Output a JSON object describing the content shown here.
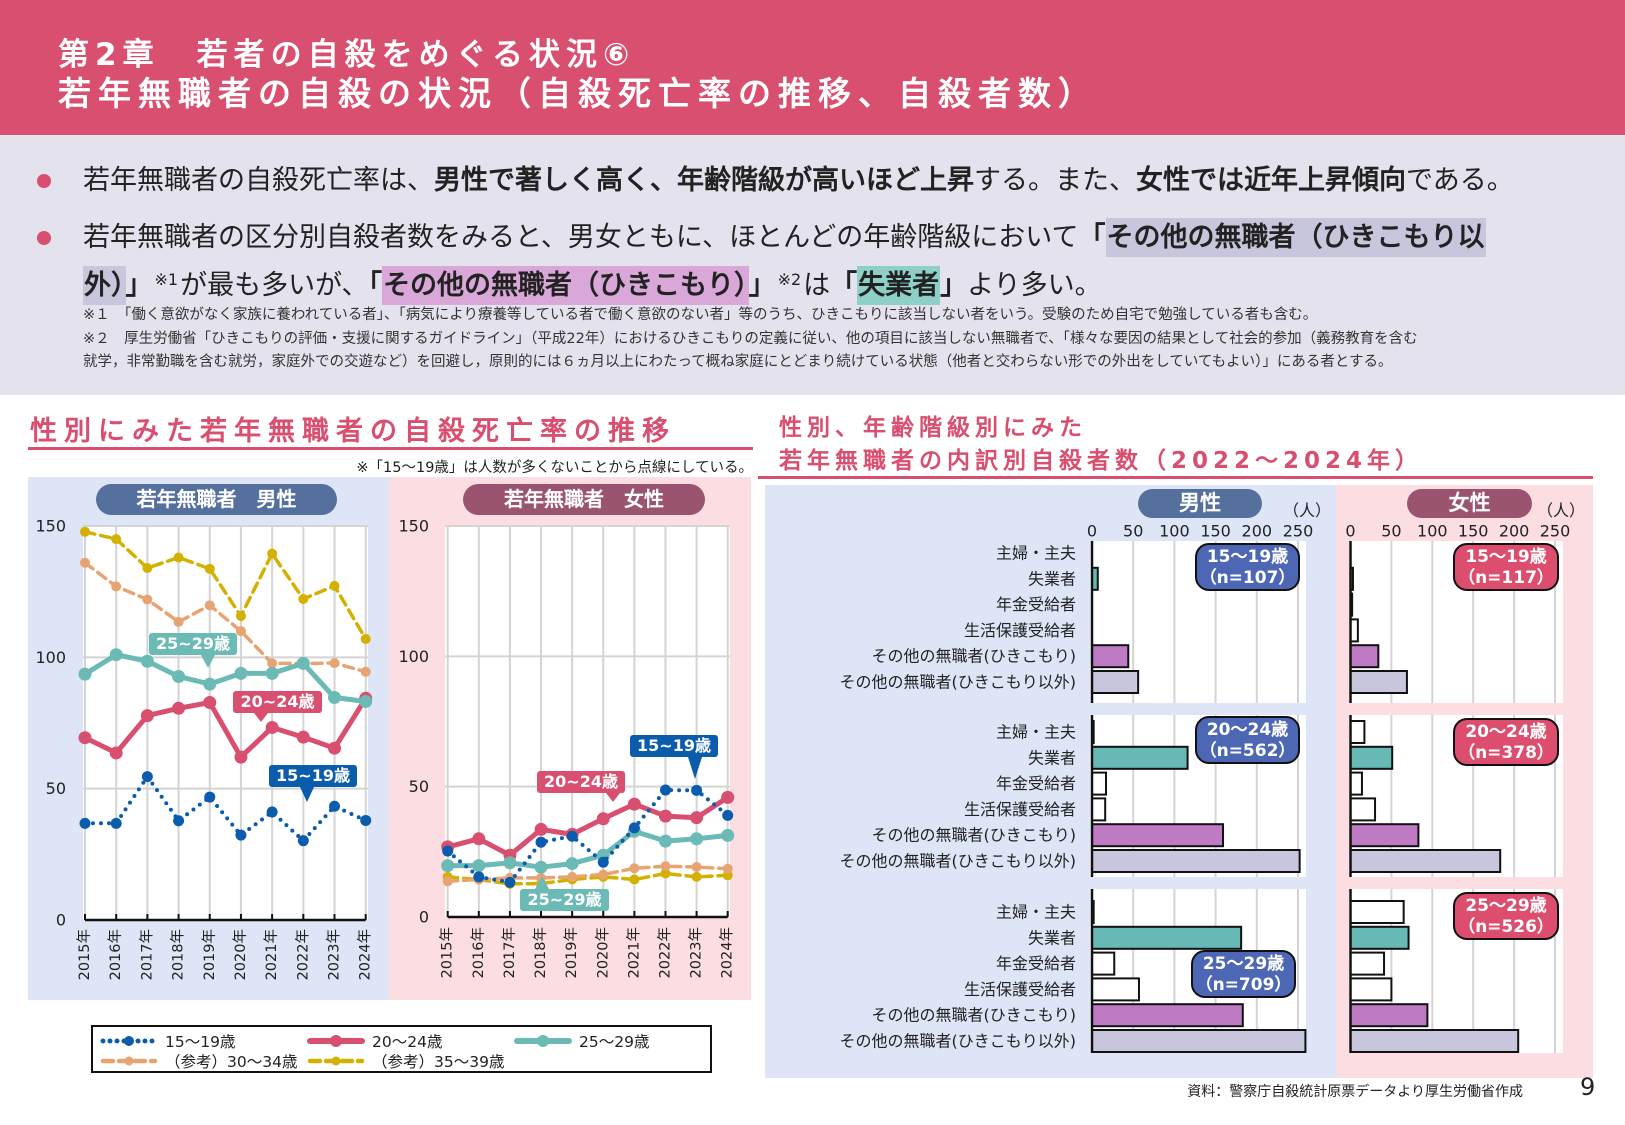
{
  "header": {
    "chapter": "第2章　若者の自殺をめぐる状況⑥",
    "title": "若年無職者の自殺の状況（自殺死亡率の推移、自殺者数）"
  },
  "summary": {
    "highlight_colors": {
      "gray": "#c8c6dc",
      "purple": "#d9a8d8",
      "teal": "#8ecfc7"
    },
    "bullets": [
      {
        "lines": [
          [
            {
              "t": "若年無職者の自殺死亡率は、"
            },
            {
              "t": "男性で著しく高く、年齢階級が高いほど上昇",
              "b": 1
            },
            {
              "t": "する。また、"
            },
            {
              "t": "女性では近年上昇傾向",
              "b": 1
            },
            {
              "t": "である。"
            }
          ]
        ]
      },
      {
        "lines": [
          [
            {
              "t": "若年無職者の区分別自殺者数をみると、男女ともに、ほとんどの年齢階級において"
            },
            {
              "t": "「",
              "b": 1
            },
            {
              "t": "その他の無職者（ひきこもり以",
              "b": 1,
              "hl": "gray"
            }
          ],
          [
            {
              "t": "外）",
              "b": 1,
              "hl": "gray"
            },
            {
              "t": "」",
              "b": 1
            },
            {
              "t": "※1",
              "sup": 1
            },
            {
              "t": "が最も多いが、"
            },
            {
              "t": "「",
              "b": 1
            },
            {
              "t": "その他の無職者（ひきこもり）",
              "b": 1,
              "hl": "purple"
            },
            {
              "t": "」",
              "b": 1
            },
            {
              "t": "※2",
              "sup": 1
            },
            {
              "t": "は"
            },
            {
              "t": "「",
              "b": 1
            },
            {
              "t": "失業者",
              "b": 1,
              "hl": "teal"
            },
            {
              "t": "」",
              "b": 1
            },
            {
              "t": "より多い。"
            }
          ]
        ]
      }
    ],
    "notes": [
      [
        {
          "t": "※１　「働く意欲がなく家族に養われている者」、「病気により療養等している者で働く意欲のない者」等のうち、ひきこもりに該当しない者をいう。受験のため自宅で勉強している者も含む。"
        }
      ],
      [
        {
          "t": "※２　厚生労働省「ひきこもりの評価・支援に関するガイドライン」（平成22年）におけるひきこもりの定義に従い、他の項目に該当しない無職者で、「様々な要因の結果として社会的参加（義務教育を含む"
        }
      ],
      [
        {
          "t": "就学，非常勤職を含む就労，家庭外での交遊など）を回避し，原則的には６ヵ月以上にわたって概ね家庭にとどまり続けている状態（他者と交わらない形での外出をしていてもよい）」にある者とする。"
        }
      ]
    ]
  },
  "left_section": {
    "title": "性別にみた若年無職者の自殺死亡率の推移",
    "note": "※「15〜19歳」は人数が多くないことから点線にしている。"
  },
  "right_section": {
    "title_line1": "性別、年齢階級別にみた",
    "title_line2": "若年無職者の内訳別自殺者数（2022〜2024年）"
  },
  "footer": {
    "source": "資料：警察庁自殺統計原票データより厚生労働省作成",
    "page": "9"
  },
  "chart_data": [
    {
      "type": "line",
      "title": "若年無職者　男性",
      "x": [
        "2015年",
        "2016年",
        "2017年",
        "2018年",
        "2019年",
        "2020年",
        "2021年",
        "2022年",
        "2023年",
        "2024年"
      ],
      "ylim": [
        0,
        150
      ],
      "yticks": [
        0,
        50,
        100,
        150
      ],
      "grid": true,
      "legend_position": "bottom",
      "series": [
        {
          "name": "15〜19歳",
          "style": "dotted",
          "color": "#0b5cad",
          "values": [
            36.8,
            36.8,
            54.6,
            37.8,
            46.8,
            32.3,
            41.1,
            30.2,
            43.3,
            37.9
          ]
        },
        {
          "name": "20〜24歳",
          "style": "solid",
          "color": "#d94f70",
          "values": [
            69.4,
            63.6,
            77.8,
            80.6,
            82.8,
            62.0,
            73.3,
            69.6,
            65.4,
            84.4
          ]
        },
        {
          "name": "25〜29歳",
          "style": "solid",
          "color": "#6bbab6",
          "values": [
            93.6,
            101.0,
            98.5,
            92.7,
            89.8,
            93.9,
            93.9,
            97.7,
            84.7,
            83.2
          ]
        },
        {
          "name": "（参考）30〜34歳",
          "style": "dashed",
          "color": "#e8a373",
          "values": [
            136.0,
            127.0,
            122.0,
            113.5,
            119.8,
            110.0,
            97.7,
            97.7,
            97.8,
            94.5
          ]
        },
        {
          "name": "（参考）35〜39歳",
          "style": "dashed",
          "color": "#d4b000",
          "values": [
            147.8,
            145.0,
            134.0,
            138.0,
            133.7,
            115.7,
            139.5,
            122.2,
            127.2,
            107.0
          ]
        }
      ],
      "annotations": [
        {
          "text": "25~29歳",
          "series": "25〜29歳"
        },
        {
          "text": "20~24歳",
          "series": "20〜24歳"
        },
        {
          "text": "15~19歳",
          "series": "15〜19歳"
        }
      ]
    },
    {
      "type": "line",
      "title": "若年無職者　女性",
      "x": [
        "2015年",
        "2016年",
        "2017年",
        "2018年",
        "2019年",
        "2020年",
        "2021年",
        "2022年",
        "2023年",
        "2024年"
      ],
      "ylim": [
        0,
        150
      ],
      "yticks": [
        0,
        50,
        100,
        150
      ],
      "grid": true,
      "series": [
        {
          "name": "15〜19歳",
          "style": "dotted",
          "color": "#0b5cad",
          "values": [
            25.3,
            15.4,
            13.3,
            28.7,
            31.0,
            21.0,
            34.2,
            48.7,
            48.6,
            39.0
          ]
        },
        {
          "name": "20〜24歳",
          "style": "solid",
          "color": "#d94f70",
          "values": [
            26.9,
            30.0,
            23.7,
            33.6,
            31.7,
            37.7,
            43.3,
            38.7,
            38.1,
            45.9
          ]
        },
        {
          "name": "25〜29歳",
          "style": "solid",
          "color": "#6bbab6",
          "values": [
            19.7,
            19.7,
            20.8,
            19.1,
            20.5,
            23.7,
            32.9,
            29.1,
            30.0,
            31.3
          ]
        },
        {
          "name": "（参考）30〜34歳",
          "style": "dashed",
          "color": "#e8a373",
          "values": [
            13.7,
            14.4,
            15.0,
            15.0,
            15.4,
            16.3,
            18.7,
            19.5,
            19.2,
            18.5
          ]
        },
        {
          "name": "（参考）35〜39歳",
          "style": "dashed",
          "color": "#d4b000",
          "values": [
            15.4,
            14.4,
            12.7,
            12.8,
            14.4,
            15.4,
            14.4,
            16.7,
            15.4,
            16.0
          ]
        }
      ],
      "annotations": [
        {
          "text": "15~19歳",
          "series": "15〜19歳"
        },
        {
          "text": "20~24歳",
          "series": "20〜24歳"
        },
        {
          "text": "25~29歳",
          "series": "25〜29歳"
        }
      ]
    },
    {
      "type": "bar",
      "orientation": "horizontal",
      "title": "性別、年齢階級別にみた若年無職者の内訳別自殺者数（2022〜2024年）",
      "unit": "（人）",
      "xlim": [
        0,
        250
      ],
      "xticks": [
        0,
        50,
        100,
        150,
        200,
        250
      ],
      "grid": true,
      "categories": [
        "主婦・主夫",
        "失業者",
        "年金受給者",
        "生活保護受給者",
        "その他の無職者(ひきこもり)",
        "その他の無職者(ひきこもり以外)"
      ],
      "category_colors": [
        "#ffffff",
        "#67b9b6",
        "#ffffff",
        "#ffffff",
        "#be7ac3",
        "#c8c6dc"
      ],
      "panels": [
        {
          "sex": "男性",
          "groups": [
            {
              "age": "15〜19歳",
              "n": "（n=107）",
              "values": [
                0,
                7,
                0,
                0,
                44,
                56
              ]
            },
            {
              "age": "20〜24歳",
              "n": "（n=562）",
              "values": [
                2,
                116,
                17,
                16,
                159,
                252
              ]
            },
            {
              "age": "25〜29歳",
              "n": "（n=709）",
              "values": [
                2,
                181,
                27,
                57,
                183,
                259
              ]
            }
          ]
        },
        {
          "sex": "女性",
          "groups": [
            {
              "age": "15〜19歳",
              "n": "（n=117）",
              "values": [
                0,
                3,
                2,
                9,
                34,
                69
              ]
            },
            {
              "age": "20〜24歳",
              "n": "（n=378）",
              "values": [
                17,
                51,
                14,
                30,
                83,
                183
              ]
            },
            {
              "age": "25〜29歳",
              "n": "（n=526）",
              "values": [
                65,
                71,
                41,
                50,
                94,
                205
              ]
            }
          ]
        }
      ]
    }
  ]
}
